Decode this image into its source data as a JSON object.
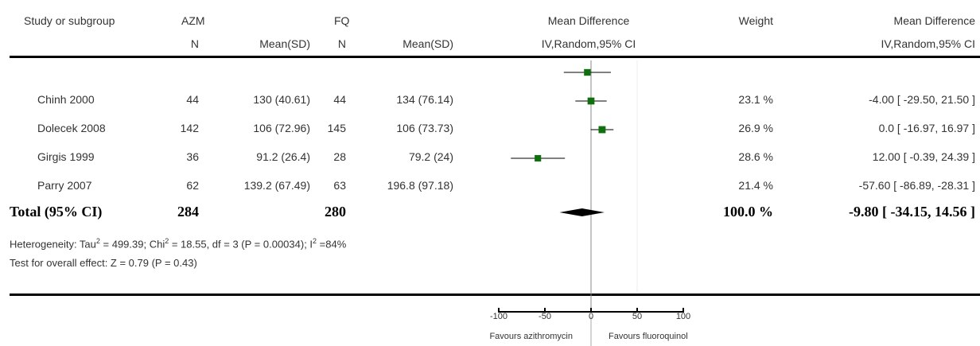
{
  "header": {
    "study": "Study or subgroup",
    "group1": "AZM",
    "group2": "FQ",
    "n": "N",
    "mean_sd": "Mean(SD)",
    "effect_title": "Mean Difference",
    "effect_method": "IV,Random,95% CI",
    "weight": "Weight",
    "effect_title_right": "Mean Difference",
    "effect_method_right": "IV,Random,95% CI"
  },
  "rows": [
    {
      "study": "Chinh 2000",
      "n1": "44",
      "mean1": "130 (40.61)",
      "n2": "44",
      "mean2": "134 (76.14)",
      "weight": "23.1 %",
      "ci": "-4.00 [ -29.50, 21.50 ]"
    },
    {
      "study": "Dolecek 2008",
      "n1": "142",
      "mean1": "106 (72.96)",
      "n2": "145",
      "mean2": "106 (73.73)",
      "weight": "26.9 %",
      "ci": "0.0 [ -16.97, 16.97 ]"
    },
    {
      "study": "Girgis 1999",
      "n1": "36",
      "mean1": "91.2 (26.4)",
      "n2": "28",
      "mean2": "79.2 (24)",
      "weight": "28.6 %",
      "ci": "12.00 [ -0.39, 24.39 ]"
    },
    {
      "study": "Parry 2007",
      "n1": "62",
      "mean1": "139.2 (67.49)",
      "n2": "63",
      "mean2": "196.8 (97.18)",
      "weight": "21.4 %",
      "ci": "-57.60 [ -86.89, -28.31 ]"
    }
  ],
  "total": {
    "label": "Total (95% CI)",
    "n1": "284",
    "n2": "280",
    "weight": "100.0 %",
    "ci": "-9.80 [ -34.15, 14.56 ]"
  },
  "heterogeneity": {
    "prefix": "Heterogeneity: Tau",
    "tau_sup": "2",
    "tau_val": " = 499.39; Chi",
    "chi_sup": "2",
    "chi_val": " = 18.55, df = 3 (P = 0.00034); I",
    "i_sup": "2",
    "i_val": " =84%"
  },
  "overall": "Test for overall effect: Z = 0.79 (P = 0.43)",
  "axis": {
    "ticks": [
      "-100",
      "-50",
      "0",
      "50",
      "100"
    ],
    "favours_left": "Favours azithromycin",
    "favours_right": "Favours fluoroquinol"
  },
  "colors": {
    "marker": "#107010",
    "diamond": "#000000"
  },
  "chart_data": {
    "type": "forest",
    "xlim": [
      -100,
      100
    ],
    "studies": [
      {
        "name": "Chinh 2000",
        "estimate": -4.0,
        "ci_low": -29.5,
        "ci_high": 21.5,
        "weight": 23.1
      },
      {
        "name": "Dolecek 2008",
        "estimate": 0.0,
        "ci_low": -16.97,
        "ci_high": 16.97,
        "weight": 26.9
      },
      {
        "name": "Girgis 1999",
        "estimate": 12.0,
        "ci_low": -0.39,
        "ci_high": 24.39,
        "weight": 28.6
      },
      {
        "name": "Parry 2007",
        "estimate": -57.6,
        "ci_low": -86.89,
        "ci_high": -28.31,
        "weight": 21.4
      }
    ],
    "pooled": {
      "estimate": -9.8,
      "ci_low": -34.15,
      "ci_high": 14.56
    },
    "ticks": [
      -100,
      -50,
      0,
      50,
      100
    ]
  }
}
